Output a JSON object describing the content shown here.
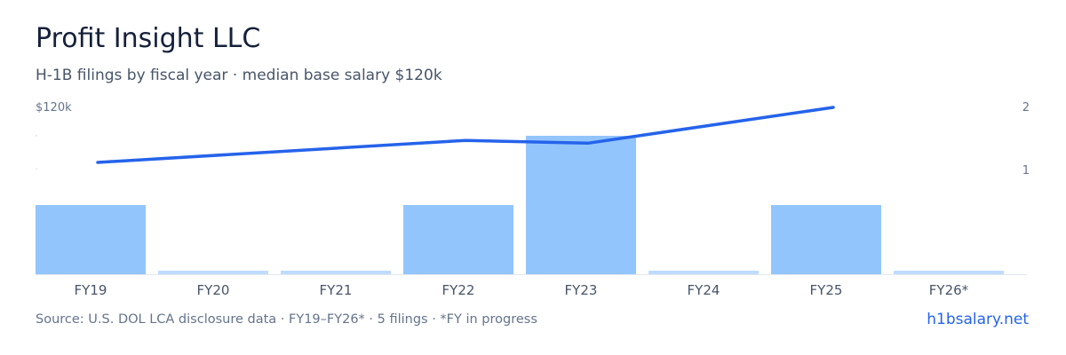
{
  "header": {
    "title": "Profit Insight LLC",
    "subtitle": "H-1B filings by fiscal year · median base salary $120k"
  },
  "chart_data": {
    "type": "bar",
    "categories": [
      "FY19",
      "FY20",
      "FY21",
      "FY22",
      "FY23",
      "FY24",
      "FY25",
      "FY26*"
    ],
    "series": [
      {
        "type": "bar",
        "axis": "right",
        "values": [
          1,
          0,
          0,
          1,
          2,
          0,
          1,
          0
        ]
      },
      {
        "type": "line",
        "axis": "left",
        "values": [
          100000,
          null,
          null,
          108000,
          107000,
          null,
          120000,
          null
        ],
        "connect_points": [
          0,
          3,
          4,
          6
        ]
      }
    ],
    "left_axis": {
      "tick_labels": [
        "$120k"
      ],
      "ylim": [
        0,
        120000
      ]
    },
    "right_axis": {
      "tick_labels": [
        "2",
        "1"
      ],
      "ylim": [
        0,
        2
      ]
    },
    "colors": {
      "bar": "#93c5fd",
      "bar_zero": "#bfdbfe",
      "line": "#2563eb",
      "axis_text": "#64748b"
    },
    "grid": false,
    "legend": "none"
  },
  "footer": {
    "source": "Source: U.S. DOL LCA disclosure data · FY19–FY26* · 5 filings · *FY in progress",
    "brand": "h1bsalary.net"
  }
}
